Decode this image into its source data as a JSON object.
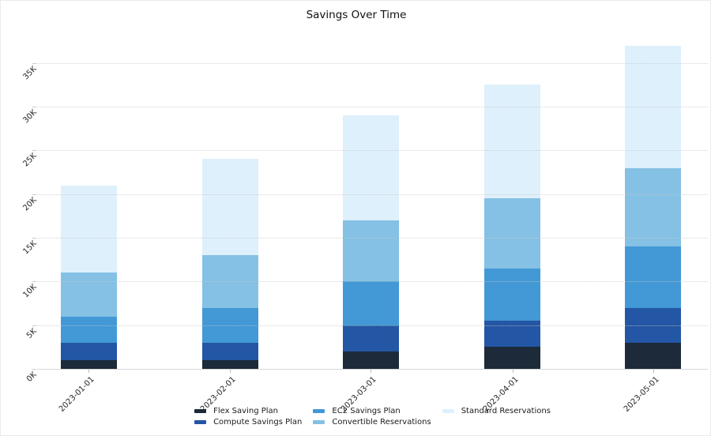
{
  "chart_data": {
    "type": "bar",
    "stacked": true,
    "title": "Savings Over Time",
    "categories": [
      "2023-01-01",
      "2023-02-01",
      "2023-03-01",
      "2023-04-01",
      "2023-05-01"
    ],
    "series": [
      {
        "name": "Flex Saving Plan",
        "color": "#1c2a3a",
        "values": [
          1000,
          1000,
          2000,
          2500,
          3000
        ]
      },
      {
        "name": "Compute Savings Plan",
        "color": "#2356a4",
        "values": [
          2000,
          2000,
          3000,
          3000,
          4000
        ]
      },
      {
        "name": "EC2 Savings Plan",
        "color": "#4299d6",
        "values": [
          3000,
          4000,
          5000,
          6000,
          7000
        ]
      },
      {
        "name": "Convertible Reservations",
        "color": "#84c1e4",
        "values": [
          5000,
          6000,
          7000,
          8000,
          9000
        ]
      },
      {
        "name": "Standard Reservations",
        "color": "#def0fb",
        "values": [
          10000,
          11000,
          12000,
          13000,
          14000
        ]
      }
    ],
    "xlabel": "",
    "ylabel": "",
    "ylim": [
      0,
      38500
    ],
    "ytick_step": 5000,
    "ytick_labels": [
      "0K",
      "5K",
      "10K",
      "15K",
      "20K",
      "25K",
      "30K",
      "35K"
    ],
    "grid": "horizontal dotted gridlines drawn above bars",
    "legend_position": "bottom center, 3 columns x 2 rows, column-major"
  }
}
